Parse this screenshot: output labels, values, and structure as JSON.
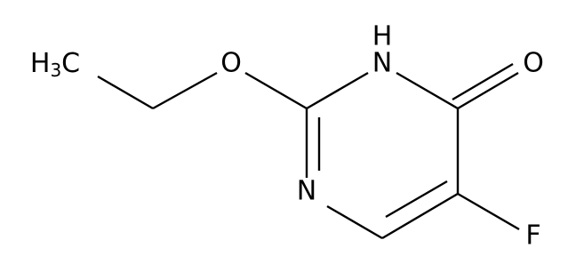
{
  "molecule": {
    "methyl": {
      "h": "H",
      "sub": "3",
      "c": "C"
    },
    "ether_o": "O",
    "nh_h": "H",
    "nh_n": "N",
    "carbonyl_o": "O",
    "ring_n": "N",
    "fluorine": "F"
  }
}
